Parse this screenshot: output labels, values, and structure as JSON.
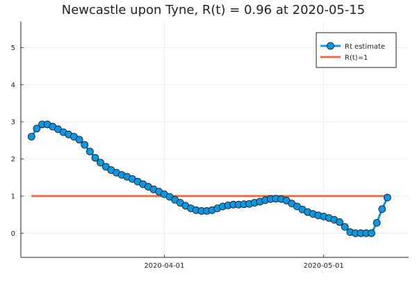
{
  "chart_data": {
    "type": "line",
    "title": "Newcastle upon Tyne, R(t) = 0.96 at 2020-05-15",
    "xlabel": "",
    "ylabel": "",
    "x_start": "2020-03-07",
    "x_end": "2020-05-15",
    "xlim": [
      "2020-03-05",
      "2020-05-17"
    ],
    "ylim": [
      -0.65,
      5.7
    ],
    "x_ticks": [
      {
        "date": "2020-04-01",
        "label": "2020-04-01"
      },
      {
        "date": "2020-05-01",
        "label": "2020-05-01"
      }
    ],
    "y_ticks": [
      0,
      1,
      2,
      3,
      4,
      5
    ],
    "grid": true,
    "legend": {
      "position": "top-right",
      "entries": [
        {
          "label": "Rt estimate",
          "color": "#0a97e4",
          "marker": "circle"
        },
        {
          "label": "R(t)=1",
          "color": "#e26f47",
          "marker": "none"
        }
      ]
    },
    "series": [
      {
        "name": "Rt estimate",
        "color": "#0a97e4",
        "values": [
          2.6,
          2.82,
          2.93,
          2.93,
          2.87,
          2.8,
          2.72,
          2.66,
          2.6,
          2.52,
          2.38,
          2.2,
          2.03,
          1.9,
          1.79,
          1.7,
          1.63,
          1.57,
          1.52,
          1.46,
          1.39,
          1.32,
          1.25,
          1.18,
          1.12,
          1.05,
          0.98,
          0.9,
          0.82,
          0.74,
          0.67,
          0.62,
          0.6,
          0.6,
          0.62,
          0.67,
          0.72,
          0.75,
          0.77,
          0.77,
          0.78,
          0.79,
          0.82,
          0.85,
          0.89,
          0.92,
          0.93,
          0.92,
          0.88,
          0.8,
          0.72,
          0.64,
          0.57,
          0.52,
          0.48,
          0.45,
          0.41,
          0.36,
          0.3,
          0.17,
          0.03,
          0.0,
          0.0,
          0.0,
          0.0,
          0.28,
          0.65,
          0.96
        ]
      },
      {
        "name": "R(t)=1",
        "color": "#e26f47",
        "constant": 1
      }
    ]
  }
}
